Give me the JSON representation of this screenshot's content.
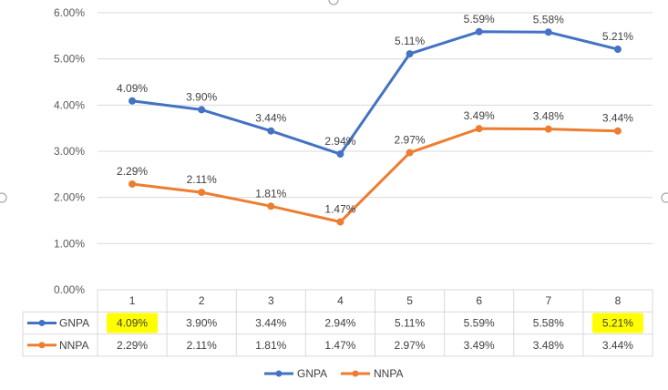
{
  "chart_data": {
    "type": "line",
    "title": "",
    "categories": [
      "1",
      "2",
      "3",
      "4",
      "5",
      "6",
      "7",
      "8"
    ],
    "series": [
      {
        "name": "GNPA",
        "color": "#4472C4",
        "values": [
          4.09,
          3.9,
          3.44,
          2.94,
          5.11,
          5.59,
          5.58,
          5.21
        ],
        "labels": [
          "4.09%",
          "3.90%",
          "3.44%",
          "2.94%",
          "5.11%",
          "5.59%",
          "5.58%",
          "5.21%"
        ]
      },
      {
        "name": "NNPA",
        "color": "#ED7D31",
        "values": [
          2.29,
          2.11,
          1.81,
          1.47,
          2.97,
          3.49,
          3.48,
          3.44
        ],
        "labels": [
          "2.29%",
          "2.11%",
          "1.81%",
          "1.47%",
          "2.97%",
          "3.49%",
          "3.48%",
          "3.44%"
        ]
      }
    ],
    "ylim": [
      0,
      6
    ],
    "yticks": [
      "0.00%",
      "1.00%",
      "2.00%",
      "3.00%",
      "4.00%",
      "5.00%",
      "6.00%"
    ],
    "grid": true,
    "data_table": true,
    "legend": "bottom-center",
    "highlight_color": "#FFFF00",
    "highlighted_cells": [
      {
        "series": 0,
        "index": 0
      },
      {
        "series": 0,
        "index": 7
      }
    ]
  }
}
